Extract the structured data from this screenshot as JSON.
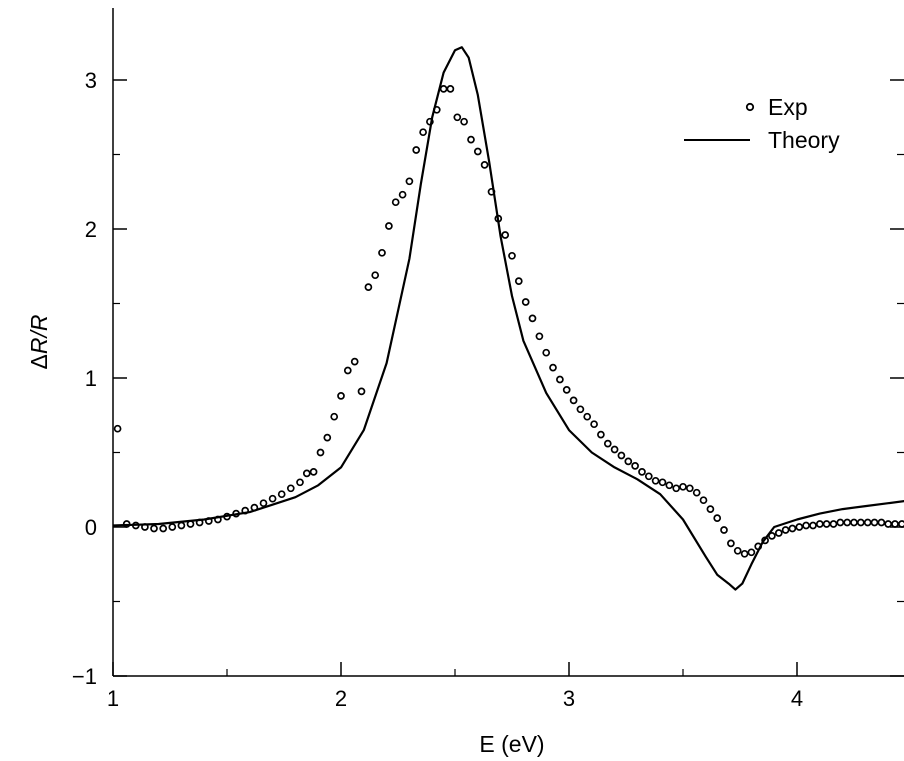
{
  "chart_data": {
    "type": "line",
    "title": "",
    "xlabel": "E (eV)",
    "ylabel": {
      "prefix": "Δ",
      "main": "R/R"
    },
    "xlim": [
      1,
      4.5
    ],
    "ylim": [
      -1,
      3.5
    ],
    "xticks": [
      1,
      2,
      3,
      4
    ],
    "yticks": [
      -1,
      0,
      1,
      2,
      3
    ],
    "xtick_labels": [
      "1",
      "2",
      "3",
      "4"
    ],
    "ytick_labels": [
      "−1",
      "0",
      "1",
      "2",
      "3"
    ],
    "grid": false,
    "legend_position": "top-right",
    "series": [
      {
        "name": "Exp",
        "style": "open-circles",
        "color": "#000000",
        "x": [
          1.02,
          1.06,
          1.1,
          1.14,
          1.18,
          1.22,
          1.26,
          1.3,
          1.34,
          1.38,
          1.42,
          1.46,
          1.5,
          1.54,
          1.58,
          1.62,
          1.66,
          1.7,
          1.74,
          1.78,
          1.82,
          1.85,
          1.88,
          1.91,
          1.94,
          1.97,
          2.0,
          2.03,
          2.06,
          2.09,
          2.12,
          2.15,
          2.18,
          2.21,
          2.24,
          2.27,
          2.3,
          2.33,
          2.36,
          2.39,
          2.42,
          2.45,
          2.48,
          2.51,
          2.54,
          2.57,
          2.6,
          2.63,
          2.66,
          2.69,
          2.72,
          2.75,
          2.78,
          2.81,
          2.84,
          2.87,
          2.9,
          2.93,
          2.96,
          2.99,
          3.02,
          3.05,
          3.08,
          3.11,
          3.14,
          3.17,
          3.2,
          3.23,
          3.26,
          3.29,
          3.32,
          3.35,
          3.38,
          3.41,
          3.44,
          3.47,
          3.5,
          3.53,
          3.56,
          3.59,
          3.62,
          3.65,
          3.68,
          3.71,
          3.74,
          3.77,
          3.8,
          3.83,
          3.86,
          3.89,
          3.92,
          3.95,
          3.98,
          4.01,
          4.04,
          4.07,
          4.1,
          4.13,
          4.16,
          4.19,
          4.22,
          4.25,
          4.28,
          4.31,
          4.34,
          4.37,
          4.4,
          4.43,
          4.46,
          4.49
        ],
        "y": [
          0.66,
          0.02,
          0.01,
          0.0,
          -0.01,
          -0.01,
          0.0,
          0.01,
          0.02,
          0.03,
          0.04,
          0.05,
          0.07,
          0.09,
          0.11,
          0.13,
          0.16,
          0.19,
          0.22,
          0.26,
          0.3,
          0.36,
          0.37,
          0.5,
          0.6,
          0.74,
          0.88,
          1.05,
          1.11,
          0.91,
          1.61,
          1.69,
          1.84,
          2.02,
          2.18,
          2.23,
          2.32,
          2.53,
          2.65,
          2.72,
          2.8,
          2.94,
          2.94,
          2.75,
          2.72,
          2.6,
          2.52,
          2.43,
          2.25,
          2.07,
          1.96,
          1.82,
          1.65,
          1.51,
          1.4,
          1.28,
          1.17,
          1.07,
          0.99,
          0.92,
          0.85,
          0.79,
          0.74,
          0.69,
          0.62,
          0.56,
          0.52,
          0.48,
          0.44,
          0.41,
          0.37,
          0.34,
          0.31,
          0.3,
          0.28,
          0.26,
          0.27,
          0.26,
          0.23,
          0.18,
          0.12,
          0.06,
          -0.02,
          -0.11,
          -0.16,
          -0.18,
          -0.17,
          -0.13,
          -0.09,
          -0.06,
          -0.04,
          -0.02,
          -0.01,
          0.0,
          0.01,
          0.01,
          0.02,
          0.02,
          0.02,
          0.03,
          0.03,
          0.03,
          0.03,
          0.03,
          0.03,
          0.03,
          0.02,
          0.02,
          0.02,
          0.02
        ]
      },
      {
        "name": "Theory",
        "style": "solid-line",
        "color": "#000000",
        "x": [
          1.0,
          1.2,
          1.4,
          1.6,
          1.8,
          1.9,
          2.0,
          2.1,
          2.2,
          2.3,
          2.35,
          2.4,
          2.45,
          2.5,
          2.53,
          2.56,
          2.6,
          2.65,
          2.7,
          2.75,
          2.8,
          2.9,
          3.0,
          3.1,
          3.2,
          3.3,
          3.4,
          3.5,
          3.6,
          3.65,
          3.7,
          3.73,
          3.76,
          3.8,
          3.85,
          3.9,
          4.0,
          4.1,
          4.2,
          4.3,
          4.4,
          4.5
        ],
        "y": [
          0.01,
          0.02,
          0.05,
          0.1,
          0.2,
          0.28,
          0.4,
          0.65,
          1.1,
          1.8,
          2.3,
          2.75,
          3.05,
          3.2,
          3.22,
          3.15,
          2.9,
          2.45,
          1.95,
          1.55,
          1.25,
          0.9,
          0.65,
          0.5,
          0.4,
          0.32,
          0.22,
          0.05,
          -0.2,
          -0.32,
          -0.38,
          -0.42,
          -0.38,
          -0.25,
          -0.1,
          0.0,
          0.05,
          0.09,
          0.12,
          0.14,
          0.16,
          0.18
        ]
      }
    ]
  }
}
